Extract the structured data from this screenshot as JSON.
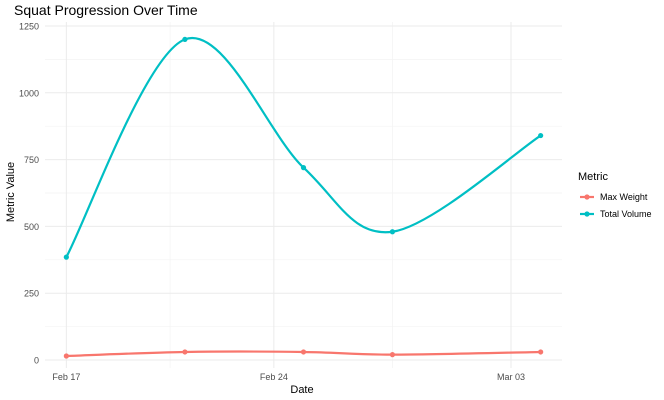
{
  "chart_data": {
    "type": "line",
    "title": "Squat Progression Over Time",
    "xlabel": "Date",
    "ylabel": "Metric Value",
    "x": [
      "2024-02-17",
      "2024-02-21",
      "2024-02-25",
      "2024-02-28",
      "2024-03-04"
    ],
    "x_tick_labels": [
      "Feb 17",
      "Feb 24",
      "Mar 03"
    ],
    "x_tick_dates": [
      "2024-02-17",
      "2024-02-24",
      "2024-03-03"
    ],
    "y_ticks": [
      0,
      250,
      500,
      750,
      1000,
      1250
    ],
    "ylim": [
      -30,
      1265
    ],
    "grid": true,
    "legend": {
      "title": "Metric",
      "position": "right"
    },
    "series": [
      {
        "name": "Max Weight",
        "color": "#F8766D",
        "values": [
          15,
          30,
          30,
          20,
          30
        ]
      },
      {
        "name": "Total Volume",
        "color": "#00BFC4",
        "values": [
          385,
          1200,
          720,
          480,
          840
        ]
      }
    ]
  }
}
